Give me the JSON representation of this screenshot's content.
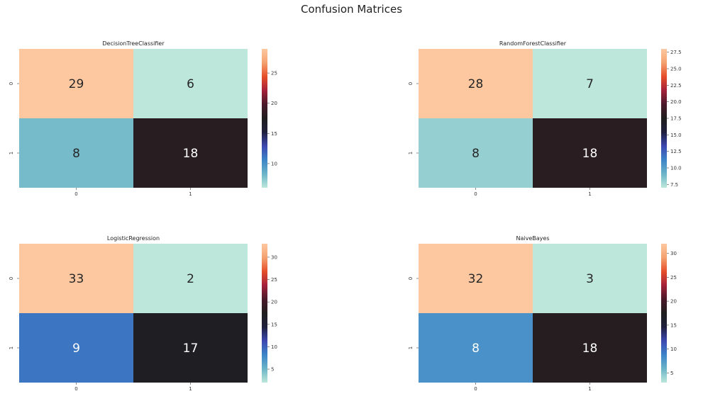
{
  "figure": {
    "title": "Confusion Matrices"
  },
  "colormap": {
    "name": "icefire",
    "stops": [
      "#bde7db",
      "#6bb4c8",
      "#3c84c8",
      "#3d48b0",
      "#1f1f3d",
      "#1f1e1e",
      "#4a1a2a",
      "#a4213a",
      "#e54e2a",
      "#f4a170",
      "#fdc8a0"
    ]
  },
  "chart_data": [
    {
      "type": "heatmap",
      "title": "DecisionTreeClassifier",
      "xlabel": "",
      "ylabel": "",
      "x_tick_labels": [
        "0",
        "1"
      ],
      "y_tick_labels": [
        "0",
        "1"
      ],
      "values": [
        [
          29,
          6
        ],
        [
          8,
          18
        ]
      ],
      "colorbar": {
        "range": [
          6,
          29
        ],
        "ticks": [
          "10",
          "15",
          "20",
          "25"
        ]
      }
    },
    {
      "type": "heatmap",
      "title": "RandomForestClassifier",
      "xlabel": "",
      "ylabel": "",
      "x_tick_labels": [
        "0",
        "1"
      ],
      "y_tick_labels": [
        "0",
        "1"
      ],
      "values": [
        [
          28,
          7
        ],
        [
          8,
          18
        ]
      ],
      "colorbar": {
        "range": [
          7,
          28
        ],
        "ticks": [
          "7.5",
          "10.0",
          "12.5",
          "15.0",
          "17.5",
          "20.0",
          "22.5",
          "25.0",
          "27.5"
        ]
      }
    },
    {
      "type": "heatmap",
      "title": "LogisticRegression",
      "xlabel": "",
      "ylabel": "",
      "x_tick_labels": [
        "0",
        "1"
      ],
      "y_tick_labels": [
        "0",
        "1"
      ],
      "values": [
        [
          33,
          2
        ],
        [
          9,
          17
        ]
      ],
      "colorbar": {
        "range": [
          2,
          33
        ],
        "ticks": [
          "5",
          "10",
          "15",
          "20",
          "25",
          "30"
        ]
      }
    },
    {
      "type": "heatmap",
      "title": "NaiveBayes",
      "xlabel": "",
      "ylabel": "",
      "x_tick_labels": [
        "0",
        "1"
      ],
      "y_tick_labels": [
        "0",
        "1"
      ],
      "values": [
        [
          32,
          3
        ],
        [
          8,
          18
        ]
      ],
      "colorbar": {
        "range": [
          3,
          32
        ],
        "ticks": [
          "5",
          "10",
          "15",
          "20",
          "25",
          "30"
        ]
      }
    }
  ]
}
